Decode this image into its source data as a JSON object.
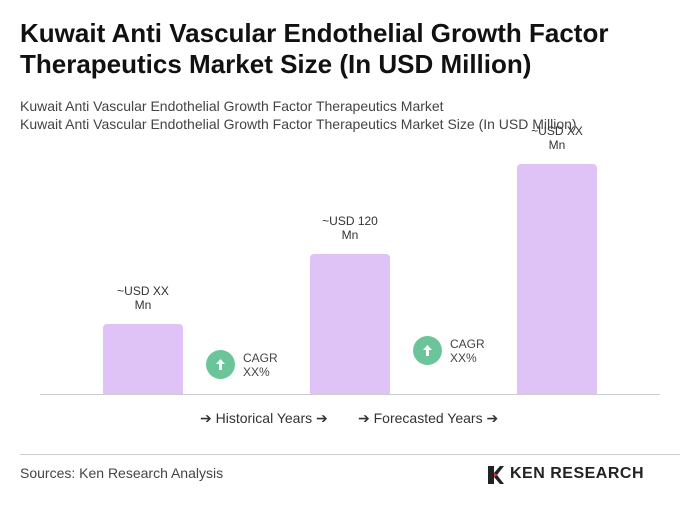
{
  "chart_data": {
    "type": "bar",
    "title": "Kuwait Anti Vascular Endothelial Growth Factor Therapeutics Market Size (In USD Million)",
    "subtitle": [
      "Kuwait Anti Vascular Endothelial Growth Factor Therapeutics Market",
      "Kuwait Anti Vascular Endothelial Growth Factor Therapeutics Market Size (In USD Million)"
    ],
    "values": [
      60,
      120,
      197
    ],
    "value_labels": [
      "~USD XX Mn",
      "~USD 120 Mn",
      "~USD XX Mn"
    ],
    "color": "#dfc2f6",
    "annotations": [
      "CAGR XX%",
      "CAGR XX%"
    ],
    "legend": [
      "Historical Years",
      "Forecasted Years"
    ],
    "source": "Sources: Ken Research Analysis",
    "logo": "KEN RESEARCH"
  }
}
